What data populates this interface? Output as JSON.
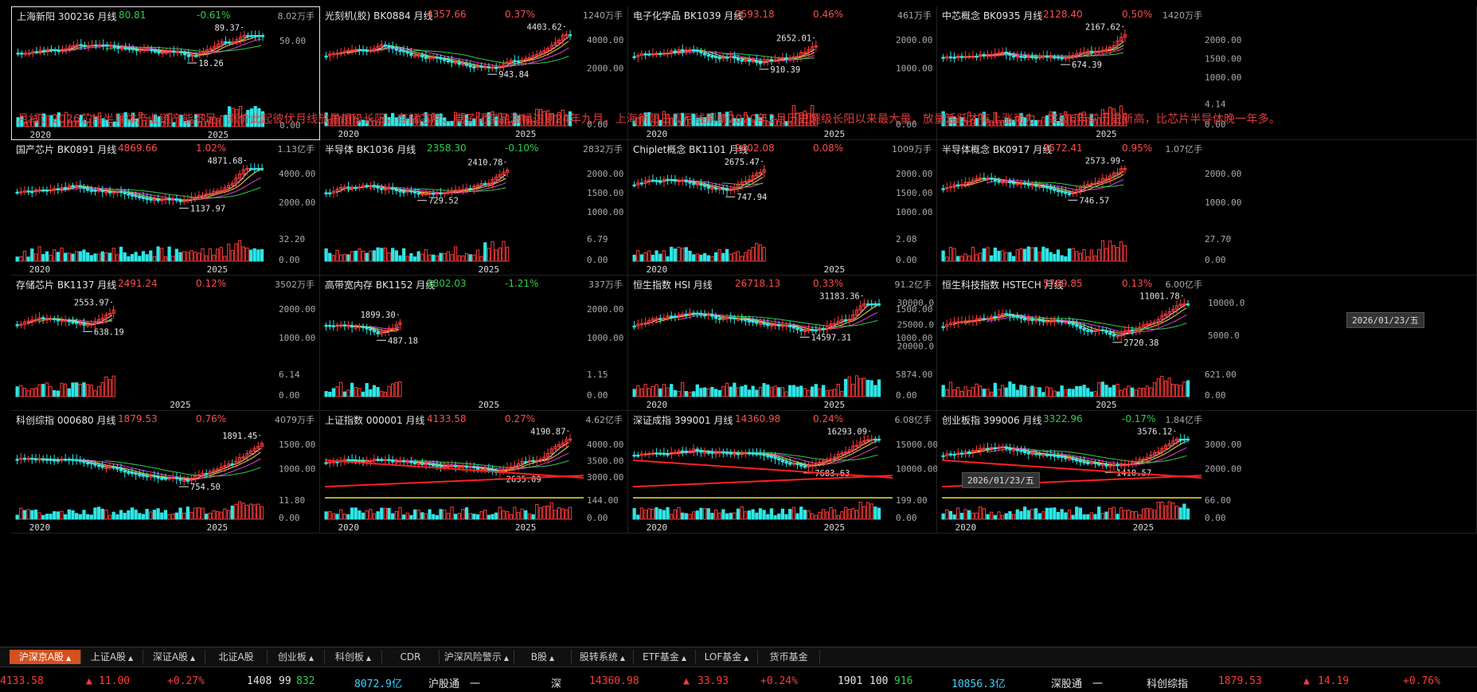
{
  "annotation": "月线：2026芯片半导体产业链产能不足，涨价此起彼伏月线放量超级长阳，存储芯片、电子化学品涨幅达到24年九月，上海新阳日周月线刷新2020年2月历史超级长阳以来最大量，放量活跃才有上涨动力，突破6年前历史新高，比芯片半导体晚一年多。",
  "date_tags": [
    "2026/01/23/五",
    "2026/01/23/五"
  ],
  "panels": [
    {
      "name": "上海新阳 300236 月线",
      "price": "80.81",
      "change": "-0.61%",
      "volume": "8.02万手",
      "price_up": false,
      "y_labels": [
        "50.00"
      ],
      "vol_labels": [
        "0.00"
      ],
      "high": "89.37",
      "low": "18.26",
      "years": [
        "2020",
        "2025"
      ],
      "low_arrow": "left",
      "active": true,
      "end_frac": 0.95
    },
    {
      "name": "光刻机(胶) BK0884 月线",
      "price": "4357.66",
      "change": "0.37%",
      "volume": "1240万手",
      "price_up": true,
      "y_labels": [
        "4000.00",
        "2000.00"
      ],
      "vol_labels": [
        "0.00"
      ],
      "high": "4403.62",
      "low": "943.84",
      "years": [
        "2020",
        "2025"
      ],
      "low_arrow": "left",
      "end_frac": 0.95
    },
    {
      "name": "电子化学品 BK1039 月线",
      "price": "2593.18",
      "change": "0.46%",
      "volume": "461万手",
      "price_up": true,
      "y_labels": [
        "2000.00",
        "1000.00"
      ],
      "vol_labels": [
        "0.00"
      ],
      "high": "2652.01",
      "low": "910.39",
      "years": [
        "2020",
        "2025"
      ],
      "low_arrow": "left",
      "end_frac": 0.72
    },
    {
      "name": "中芯概念 BK0935 月线",
      "price": "2128.40",
      "change": "0.50%",
      "volume": "1420万手",
      "price_up": true,
      "y_labels": [
        "2000.00",
        "1500.00",
        "1000.00"
      ],
      "vol_labels": [
        "4.14",
        "0.00"
      ],
      "high": "2167.62",
      "low": "674.39",
      "years": [
        "2025"
      ],
      "low_arrow": "left",
      "end_frac": 0.72
    },
    {
      "name": "国产芯片 BK0891 月线",
      "price": "4869.66",
      "change": "1.02%",
      "volume": "1.13亿手",
      "price_up": true,
      "y_labels": [
        "4000.00",
        "2000.00"
      ],
      "vol_labels": [
        "32.20",
        "0.00"
      ],
      "high": "4871.68",
      "low": "1137.97",
      "years": [
        "2020",
        "2025"
      ],
      "low_arrow": "left",
      "end_frac": 0.95
    },
    {
      "name": "半导体 BK1036 月线",
      "price": "2358.30",
      "change": "-0.10%",
      "volume": "2832万手",
      "price_up": false,
      "y_labels": [
        "2000.00",
        "1500.00",
        "1000.00"
      ],
      "vol_labels": [
        "6.79",
        "0.00"
      ],
      "high": "2410.78",
      "low": "729.52",
      "years": [
        "2025"
      ],
      "low_arrow": "left",
      "end_frac": 0.72
    },
    {
      "name": "Chiplet概念 BK1101 月线",
      "price": "2602.08",
      "change": "0.08%",
      "volume": "1009万手",
      "price_up": true,
      "y_labels": [
        "2000.00",
        "1500.00",
        "1000.00"
      ],
      "vol_labels": [
        "2.08",
        "0.00"
      ],
      "high": "2675.47",
      "low": "747.94",
      "years": [
        "2020",
        "2025"
      ],
      "low_arrow": "left",
      "end_frac": 0.52
    },
    {
      "name": "半导体概念 BK0917 月线",
      "price": "2572.41",
      "change": "0.95%",
      "volume": "1.07亿手",
      "price_up": true,
      "y_labels": [
        "2000.00",
        "1000.00"
      ],
      "vol_labels": [
        "27.70",
        "0.00"
      ],
      "high": "2573.99",
      "low": "746.57",
      "years": [],
      "low_arrow": "left",
      "end_frac": 0.72
    },
    {
      "name": "存储芯片 BK1137 月线",
      "price": "2491.24",
      "change": "0.12%",
      "volume": "3502万手",
      "price_up": true,
      "y_labels": [
        "2000.00",
        "1000.00"
      ],
      "vol_labels": [
        "6.14",
        "0.00"
      ],
      "high": "2553.97",
      "low": "638.19",
      "years": [
        "2025"
      ],
      "low_arrow": "left",
      "end_frac": 0.38
    },
    {
      "name": "高带宽内存 BK1152 月线",
      "price": "1802.03",
      "change": "-1.21%",
      "volume": "337万手",
      "price_up": false,
      "y_labels": [
        "2000.00",
        "1000.00"
      ],
      "vol_labels": [
        "1.15",
        "0.00"
      ],
      "high": "1899.30",
      "low": "487.18",
      "years": [
        "2025"
      ],
      "low_arrow": "left",
      "end_frac": 0.3
    },
    {
      "name": "恒生指数 HSI 月线",
      "price": "26718.13",
      "change": "0.33%",
      "volume": "91.2亿手",
      "price_up": true,
      "y_labels": [
        "1500.00",
        "1000.00"
      ],
      "right_labels": [
        "30000.0",
        "25000.0",
        "20000.0"
      ],
      "vol_labels": [
        "5874.00",
        "0.00"
      ],
      "high": "31183.36",
      "low": "14597.31",
      "years": [
        "2020",
        "2025"
      ],
      "low_arrow": "left",
      "end_frac": 0.95
    },
    {
      "name": "恒生科技指数 HSTECH 月线",
      "price": "5769.85",
      "change": "0.13%",
      "volume": "6.00亿手",
      "price_up": true,
      "y_labels": [],
      "right_labels": [
        "10000.0",
        "5000.0"
      ],
      "vol_labels": [
        "621.00",
        "0.00"
      ],
      "high": "11001.78",
      "low": "2720.38",
      "years": [
        "2025"
      ],
      "low_arrow": "left",
      "end_frac": 0.95
    },
    {
      "name": "科创综指 000680 月线",
      "price": "1879.53",
      "change": "0.76%",
      "volume": "4079万手",
      "price_up": true,
      "y_labels": [
        "1500.00",
        "1000.00"
      ],
      "vol_labels": [
        "11.80",
        "0.00"
      ],
      "high": "1891.45",
      "low": "754.50",
      "years": [
        "2020",
        "2025"
      ],
      "low_arrow": "left",
      "end_frac": 0.95
    },
    {
      "name": "上证指数 000001 月线",
      "price": "4133.58",
      "change": "0.27%",
      "volume": "4.62亿手",
      "price_up": true,
      "y_labels": [
        "4000.00",
        "3500.00",
        "3000.00"
      ],
      "vol_labels": [
        "144.00",
        "0.00"
      ],
      "high": "4190.87",
      "low": "2635.09",
      "years": [
        "2020",
        "2025"
      ],
      "low_arrow": "left",
      "end_frac": 0.95
    },
    {
      "name": "深证成指 399001 月线",
      "price": "14360.98",
      "change": "0.24%",
      "volume": "6.08亿手",
      "price_up": true,
      "y_labels": [
        "15000.00",
        "10000.00"
      ],
      "vol_labels": [
        "199.00",
        "0.00"
      ],
      "high": "16293.09",
      "low": "7683.63",
      "years": [
        "2020",
        "2025"
      ],
      "low_arrow": "left",
      "end_frac": 0.95
    },
    {
      "name": "创业板指 399006 月线",
      "price": "3322.96",
      "change": "-0.17%",
      "volume": "1.84亿手",
      "price_up": false,
      "y_labels": [
        "3000.00",
        "2000.00"
      ],
      "vol_labels": [
        "66.00",
        "0.00"
      ],
      "high": "3576.12",
      "low": "1410.57",
      "years": [
        "2020",
        "2025"
      ],
      "low_arrow": "left",
      "end_frac": 0.95
    }
  ],
  "tabs": [
    {
      "label": "沪深京A股",
      "caret": true,
      "active": true
    },
    {
      "label": "上证A股",
      "caret": true
    },
    {
      "label": "深证A股",
      "caret": true
    },
    {
      "label": "北证A股",
      "caret": false
    },
    {
      "label": "创业板",
      "caret": true
    },
    {
      "label": "科创板",
      "caret": true
    },
    {
      "label": "CDR",
      "caret": false
    },
    {
      "label": "沪深风险警示",
      "caret": true
    },
    {
      "label": "B股",
      "caret": true
    },
    {
      "label": "股转系统",
      "caret": true
    },
    {
      "label": "ETF基金",
      "caret": true
    },
    {
      "label": "LOF基金",
      "caret": true
    },
    {
      "label": "货币基金",
      "caret": false
    }
  ],
  "status": {
    "sh_index": "4133.58",
    "sh_arrow": "▲",
    "sh_points": "11.00",
    "sh_pct": "+0.27%",
    "sh_up": "1408",
    "sh_flat": "99",
    "sh_down": "832",
    "sh_amount": "8072.9亿",
    "hgt_label": "沪股通",
    "hgt_value": "一",
    "sz_label": "深",
    "sz_index": "14360.98",
    "sz_arrow": "▲",
    "sz_points": "33.93",
    "sz_pct": "+0.24%",
    "sz_up": "1901",
    "sz_flat": "100",
    "sz_down": "916",
    "sz_amount": "10856.3亿",
    "sgt_label": "深股通",
    "sgt_value": "一",
    "kc_label": "科创综指",
    "kc_index": "1879.53",
    "kc_arrow": "▲",
    "kc_points": "14.19",
    "kc_pct": "+0.76%"
  }
}
